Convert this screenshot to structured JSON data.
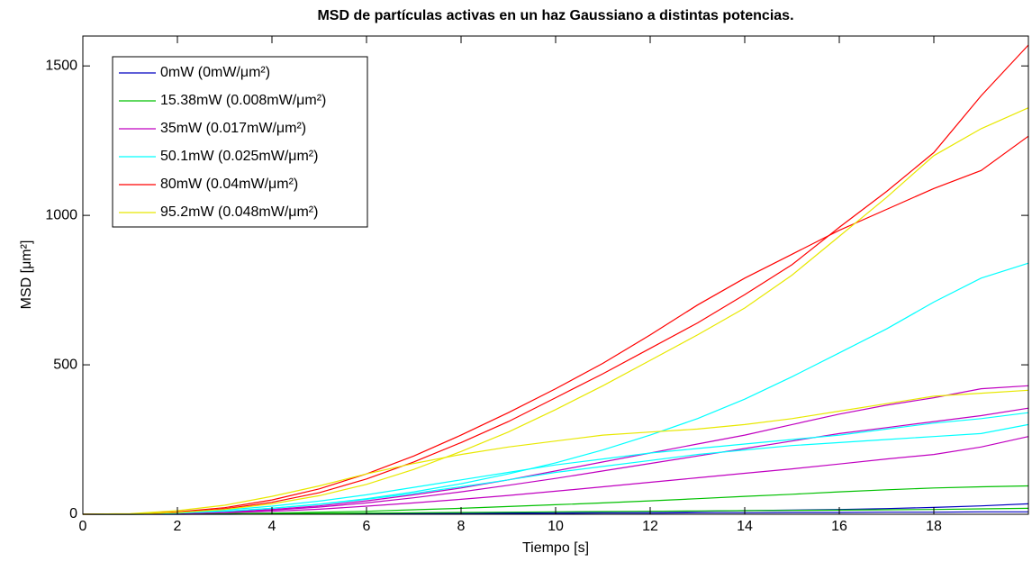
{
  "chart_data": {
    "type": "line",
    "title": "MSD de partículas activas en un haz Gaussiano a distintas potencias.",
    "xlabel": "Tiempo [s]",
    "ylabel": "MSD [μm²]",
    "x": [
      0,
      1,
      2,
      3,
      4,
      5,
      6,
      7,
      8,
      9,
      10,
      11,
      12,
      13,
      14,
      15,
      16,
      17,
      18,
      19,
      20
    ],
    "xlim": [
      0,
      20
    ],
    "xticks": [
      0,
      2,
      4,
      6,
      8,
      10,
      12,
      14,
      16,
      18
    ],
    "ylim": [
      0,
      1600
    ],
    "yticks": [
      0,
      500,
      1000,
      1500
    ],
    "legend": "upper left",
    "series": [
      {
        "name": "0mW (0mW/μm²)",
        "color": "#0000c0",
        "lines": [
          [
            0,
            0,
            0,
            1,
            1,
            2,
            3,
            4,
            5,
            6,
            7,
            8,
            9,
            10,
            12,
            14,
            16,
            19,
            23,
            28,
            35
          ],
          [
            0,
            0,
            0,
            0,
            1,
            1,
            1,
            2,
            2,
            3,
            3,
            4,
            4,
            5,
            5,
            6,
            6,
            7,
            7,
            8,
            8
          ]
        ]
      },
      {
        "name": "15.38mW (0.008mW/μm²)",
        "color": "#00c000",
        "lines": [
          [
            0,
            0,
            1,
            2,
            4,
            7,
            10,
            15,
            20,
            26,
            32,
            38,
            45,
            52,
            60,
            67,
            75,
            82,
            88,
            92,
            95
          ],
          [
            0,
            0,
            1,
            1,
            2,
            3,
            4,
            5,
            6,
            7,
            8,
            9,
            10,
            11,
            12,
            13,
            14,
            15,
            16,
            18,
            20
          ]
        ]
      },
      {
        "name": "35mW (0.017mW/μm²)",
        "color": "#c000c0",
        "lines": [
          [
            0,
            1,
            3,
            8,
            16,
            28,
            45,
            65,
            88,
            115,
            145,
            175,
            205,
            235,
            265,
            300,
            335,
            365,
            390,
            420,
            430
          ],
          [
            0,
            1,
            3,
            7,
            14,
            24,
            38,
            55,
            75,
            97,
            120,
            145,
            170,
            195,
            220,
            245,
            270,
            290,
            310,
            330,
            355
          ],
          [
            0,
            0,
            2,
            5,
            10,
            17,
            27,
            38,
            50,
            63,
            77,
            92,
            107,
            122,
            137,
            152,
            168,
            185,
            200,
            225,
            260
          ]
        ]
      },
      {
        "name": "50.1mW (0.025mW/μm²)",
        "color": "#00ffff",
        "lines": [
          [
            0,
            1,
            4,
            10,
            20,
            34,
            52,
            75,
            102,
            135,
            172,
            215,
            265,
            320,
            385,
            460,
            540,
            620,
            710,
            790,
            840
          ],
          [
            0,
            1,
            5,
            14,
            27,
            44,
            65,
            90,
            115,
            140,
            165,
            185,
            205,
            220,
            235,
            250,
            265,
            285,
            305,
            320,
            340
          ],
          [
            0,
            1,
            4,
            10,
            20,
            33,
            50,
            70,
            92,
            115,
            140,
            160,
            180,
            200,
            215,
            230,
            240,
            250,
            260,
            270,
            300
          ]
        ]
      },
      {
        "name": "80mW (0.04mW/μm²)",
        "color": "#ff0000",
        "lines": [
          [
            0,
            1,
            8,
            22,
            48,
            85,
            135,
            195,
            265,
            340,
            420,
            505,
            600,
            700,
            790,
            870,
            950,
            1020,
            1090,
            1150,
            1265
          ],
          [
            0,
            1,
            6,
            18,
            40,
            72,
            118,
            175,
            240,
            310,
            390,
            470,
            555,
            640,
            735,
            835,
            960,
            1080,
            1210,
            1400,
            1570
          ]
        ]
      },
      {
        "name": "95.2mW (0.048mW/μm²)",
        "color": "#e8e800",
        "lines": [
          [
            0,
            1,
            6,
            16,
            35,
            62,
            100,
            150,
            210,
            275,
            350,
            430,
            515,
            600,
            690,
            800,
            930,
            1060,
            1200,
            1290,
            1360
          ],
          [
            0,
            2,
            12,
            30,
            60,
            95,
            135,
            170,
            200,
            225,
            245,
            265,
            275,
            285,
            300,
            320,
            345,
            370,
            395,
            405,
            415
          ]
        ]
      }
    ]
  }
}
